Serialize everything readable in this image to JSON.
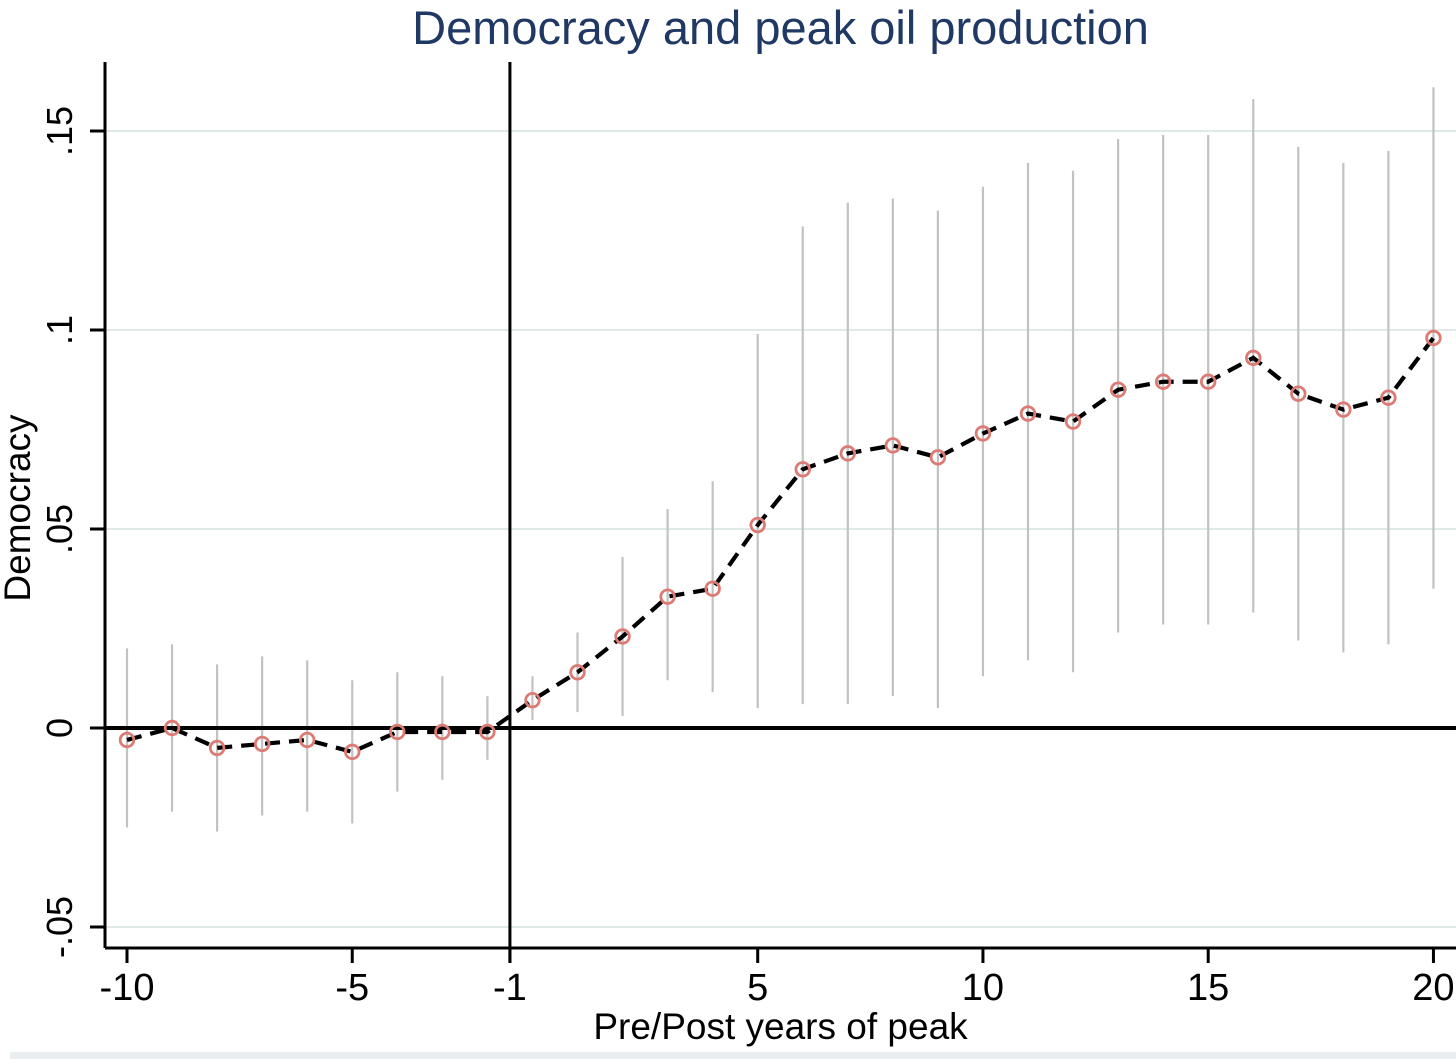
{
  "chart_data": {
    "type": "line",
    "title": "Democracy and peak oil production",
    "title_color": "#1f3864",
    "xlabel": "Pre/Post years of peak",
    "ylabel": "Democracy",
    "legend": "none",
    "grid": "horizontal-only",
    "colors": {
      "marker": "#dc7b74",
      "series_line": "#000000",
      "ci_whisker": "#c2c2c2",
      "gridline": "#dfeae8",
      "axis": "#000000"
    },
    "ylim": [
      -0.0553,
      0.1673
    ],
    "xlim_idx": [
      -0.49,
      29.37
    ],
    "y_ticks": [
      {
        "label": ".15",
        "value": 0.15
      },
      {
        "label": ".1",
        "value": 0.1
      },
      {
        "label": ".05",
        "value": 0.05
      },
      {
        "label": "0",
        "value": 0.0
      },
      {
        "label": "-.05",
        "value": -0.05
      }
    ],
    "x_ticks": [
      {
        "label": "-10",
        "idx": 0
      },
      {
        "label": "-5",
        "idx": 5
      },
      {
        "label": "-1",
        "idx": 8.5
      },
      {
        "label": "5",
        "idx": 14
      },
      {
        "label": "10",
        "idx": 19
      },
      {
        "label": "15",
        "idx": 24
      },
      {
        "label": "20",
        "idx": 29
      }
    ],
    "ref_line": {
      "at_label": "-1",
      "idx": 8.5
    },
    "zero_line_value": 0,
    "points": [
      {
        "t": -10,
        "y": -0.003,
        "lo": -0.025,
        "hi": 0.02
      },
      {
        "t": -9,
        "y": 0.0,
        "lo": -0.021,
        "hi": 0.021
      },
      {
        "t": -8,
        "y": -0.005,
        "lo": -0.026,
        "hi": 0.016
      },
      {
        "t": -7,
        "y": -0.004,
        "lo": -0.022,
        "hi": 0.018
      },
      {
        "t": -6,
        "y": -0.003,
        "lo": -0.021,
        "hi": 0.017
      },
      {
        "t": -5,
        "y": -0.006,
        "lo": -0.024,
        "hi": 0.012
      },
      {
        "t": -4,
        "y": -0.001,
        "lo": -0.016,
        "hi": 0.014
      },
      {
        "t": -3,
        "y": -0.001,
        "lo": -0.013,
        "hi": 0.013
      },
      {
        "t": -2,
        "y": -0.001,
        "lo": -0.008,
        "hi": 0.008
      },
      {
        "t": -1,
        "y": 0.007,
        "lo": 0.002,
        "hi": 0.013
      },
      {
        "t": 1,
        "y": 0.014,
        "lo": 0.004,
        "hi": 0.024
      },
      {
        "t": 2,
        "y": 0.023,
        "lo": 0.003,
        "hi": 0.043
      },
      {
        "t": 3,
        "y": 0.033,
        "lo": 0.012,
        "hi": 0.055
      },
      {
        "t": 4,
        "y": 0.035,
        "lo": 0.009,
        "hi": 0.062
      },
      {
        "t": 5,
        "y": 0.051,
        "lo": 0.005,
        "hi": 0.099
      },
      {
        "t": 6,
        "y": 0.065,
        "lo": 0.006,
        "hi": 0.126
      },
      {
        "t": 7,
        "y": 0.069,
        "lo": 0.006,
        "hi": 0.132
      },
      {
        "t": 8,
        "y": 0.071,
        "lo": 0.008,
        "hi": 0.133
      },
      {
        "t": 9,
        "y": 0.068,
        "lo": 0.005,
        "hi": 0.13
      },
      {
        "t": 10,
        "y": 0.074,
        "lo": 0.013,
        "hi": 0.136
      },
      {
        "t": 11,
        "y": 0.079,
        "lo": 0.017,
        "hi": 0.142
      },
      {
        "t": 12,
        "y": 0.077,
        "lo": 0.014,
        "hi": 0.14
      },
      {
        "t": 13,
        "y": 0.085,
        "lo": 0.024,
        "hi": 0.148
      },
      {
        "t": 14,
        "y": 0.087,
        "lo": 0.026,
        "hi": 0.149
      },
      {
        "t": 15,
        "y": 0.087,
        "lo": 0.026,
        "hi": 0.149
      },
      {
        "t": 16,
        "y": 0.093,
        "lo": 0.029,
        "hi": 0.158
      },
      {
        "t": 17,
        "y": 0.084,
        "lo": 0.022,
        "hi": 0.146
      },
      {
        "t": 18,
        "y": 0.08,
        "lo": 0.019,
        "hi": 0.142
      },
      {
        "t": 19,
        "y": 0.083,
        "lo": 0.021,
        "hi": 0.145
      },
      {
        "t": 20,
        "y": 0.098,
        "lo": 0.035,
        "hi": 0.161
      }
    ]
  }
}
